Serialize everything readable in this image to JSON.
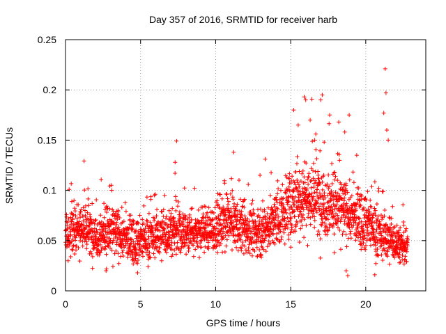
{
  "chart_data": {
    "type": "scatter",
    "title": "Day 357 of 2016, SRMTID for receiver harb",
    "xlabel": "GPS time / hours",
    "ylabel": "SRMTID / TECUs",
    "xlim": [
      0,
      24
    ],
    "ylim": [
      0,
      0.25
    ],
    "xticks": [
      0,
      5,
      10,
      15,
      20
    ],
    "xtick_labels": [
      "0",
      "5",
      "10",
      "15",
      "20"
    ],
    "yticks": [
      0,
      0.05,
      0.1,
      0.15,
      0.2,
      0.25
    ],
    "ytick_labels": [
      "0",
      "0.05",
      "0.1",
      "0.15",
      "0.2",
      "0.25"
    ],
    "grid": true,
    "marker": "+",
    "marker_color": "#ff0000",
    "series": [
      {
        "name": "SRMTID",
        "profile": {
          "x_hours": [
            0,
            1,
            2,
            3,
            4,
            5,
            6,
            7,
            8,
            9,
            10,
            11,
            12,
            13,
            14,
            15,
            16,
            17,
            18,
            19,
            20,
            21,
            22,
            22.8
          ],
          "median": [
            0.055,
            0.065,
            0.055,
            0.06,
            0.052,
            0.05,
            0.055,
            0.06,
            0.058,
            0.06,
            0.062,
            0.07,
            0.06,
            0.058,
            0.07,
            0.085,
            0.095,
            0.09,
            0.085,
            0.075,
            0.07,
            0.055,
            0.05,
            0.04
          ],
          "spread": [
            0.02,
            0.025,
            0.02,
            0.025,
            0.02,
            0.02,
            0.02,
            0.025,
            0.02,
            0.02,
            0.022,
            0.025,
            0.022,
            0.02,
            0.025,
            0.03,
            0.035,
            0.035,
            0.03,
            0.025,
            0.025,
            0.022,
            0.02,
            0.015
          ],
          "n_points": 2600
        },
        "peaks": [
          {
            "x": 7.4,
            "y": 0.149
          },
          {
            "x": 7.3,
            "y": 0.128
          },
          {
            "x": 11.2,
            "y": 0.138
          },
          {
            "x": 13.3,
            "y": 0.131
          },
          {
            "x": 15.2,
            "y": 0.18
          },
          {
            "x": 15.5,
            "y": 0.165
          },
          {
            "x": 15.9,
            "y": 0.193
          },
          {
            "x": 16.0,
            "y": 0.19
          },
          {
            "x": 16.3,
            "y": 0.17
          },
          {
            "x": 16.6,
            "y": 0.15
          },
          {
            "x": 17.1,
            "y": 0.195
          },
          {
            "x": 17.0,
            "y": 0.19
          },
          {
            "x": 17.6,
            "y": 0.175
          },
          {
            "x": 18.2,
            "y": 0.168
          },
          {
            "x": 18.6,
            "y": 0.158
          },
          {
            "x": 18.9,
            "y": 0.175
          },
          {
            "x": 19.4,
            "y": 0.135
          },
          {
            "x": 21.3,
            "y": 0.221
          },
          {
            "x": 21.35,
            "y": 0.197
          },
          {
            "x": 21.2,
            "y": 0.177
          },
          {
            "x": 21.4,
            "y": 0.16
          },
          {
            "x": 21.5,
            "y": 0.15
          },
          {
            "x": 18.8,
            "y": 0.015
          },
          {
            "x": 18.7,
            "y": 0.02
          },
          {
            "x": 20.6,
            "y": 0.016
          },
          {
            "x": 4.8,
            "y": 0.018
          },
          {
            "x": 2.7,
            "y": 0.02
          }
        ]
      }
    ]
  }
}
